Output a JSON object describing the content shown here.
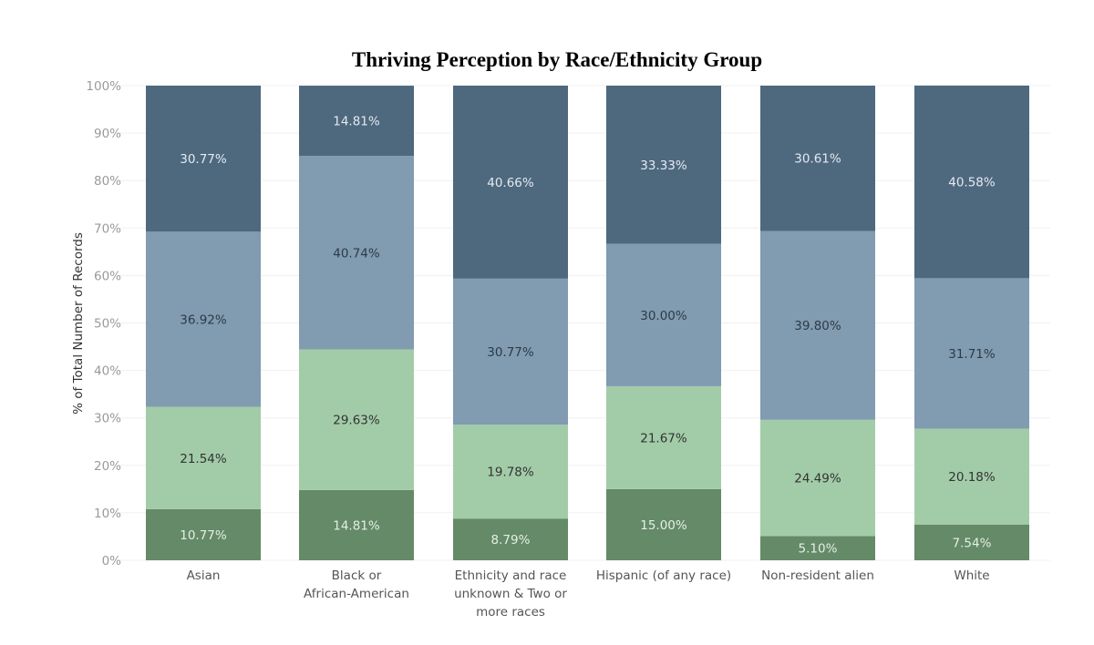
{
  "chart_data": {
    "type": "bar",
    "stacked": true,
    "title": "Thriving Perception by Race/Ethnicity Group",
    "xlabel": "",
    "ylabel": "% of Total Number of Records",
    "ylim": [
      0,
      100
    ],
    "yticks": [
      "0%",
      "10%",
      "20%",
      "30%",
      "40%",
      "50%",
      "60%",
      "70%",
      "80%",
      "90%",
      "100%"
    ],
    "grid": true,
    "legend": "none",
    "categories": [
      [
        "Asian"
      ],
      [
        "Black or",
        "African-American"
      ],
      [
        "Ethnicity and race",
        "unknown & Two or",
        "more races"
      ],
      [
        "Hispanic (of any race)"
      ],
      [
        "Non-resident alien"
      ],
      [
        "White"
      ]
    ],
    "series": [
      {
        "name": "segment-1",
        "color": "#648a67",
        "label_color": "#e6efe6",
        "values": [
          10.77,
          14.81,
          8.79,
          15.0,
          5.1,
          7.54
        ],
        "labels": [
          "10.77%",
          "14.81%",
          "8.79%",
          "15.00%",
          "5.10%",
          "7.54%"
        ]
      },
      {
        "name": "segment-2",
        "color": "#a2cca8",
        "label_color": "#333333",
        "values": [
          21.54,
          29.63,
          19.78,
          21.67,
          24.49,
          20.18
        ],
        "labels": [
          "21.54%",
          "29.63%",
          "19.78%",
          "21.67%",
          "24.49%",
          "20.18%"
        ]
      },
      {
        "name": "segment-3",
        "color": "#819bb0",
        "label_color": "#2e3b47",
        "values": [
          36.92,
          40.74,
          30.77,
          30.0,
          39.8,
          31.71
        ],
        "labels": [
          "36.92%",
          "40.74%",
          "30.77%",
          "30.00%",
          "39.80%",
          "31.71%"
        ]
      },
      {
        "name": "segment-4",
        "color": "#4e687e",
        "label_color": "#e4eaf0",
        "values": [
          30.77,
          14.81,
          40.66,
          33.33,
          30.61,
          40.58
        ],
        "labels": [
          "30.77%",
          "14.81%",
          "40.66%",
          "33.33%",
          "30.61%",
          "40.58%"
        ]
      }
    ]
  }
}
